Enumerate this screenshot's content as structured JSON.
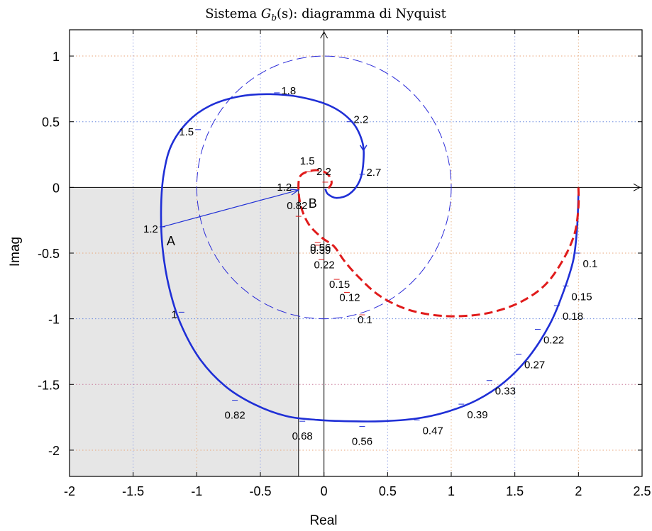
{
  "chart_data": {
    "type": "line",
    "title": "Sistema G_b(s): diagramma di Nyquist",
    "title_parts": {
      "prefix": "Sistema ",
      "symbol": "G",
      "subscript": "b",
      "arg": "(s)",
      "suffix": ": diagramma di Nyquist"
    },
    "xlabel": "Real",
    "ylabel": "Imag",
    "xlim": [
      -2,
      2.5
    ],
    "ylim": [
      -2.2,
      1.2
    ],
    "xticks": [
      -2,
      -1.5,
      -1,
      -0.5,
      0,
      0.5,
      1,
      1.5,
      2,
      2.5
    ],
    "yticks": [
      1,
      0.5,
      0,
      -0.5,
      -1,
      -1.5,
      -2
    ],
    "xtick_labels": [
      "-2",
      "-1.5",
      "-1",
      "-0.5",
      "0",
      "0.5",
      "1",
      "1.5",
      "2",
      "2.5"
    ],
    "ytick_labels": [
      "1",
      "0.5",
      "0",
      "-0.5",
      "-1",
      "-1.5",
      "-2"
    ],
    "grid": true,
    "shaded_region": {
      "x": [
        -2,
        -0.2
      ],
      "y": [
        -2.2,
        0
      ],
      "color": "#e6e6e6"
    },
    "unit_circle": {
      "center": [
        0,
        0
      ],
      "radius": 1,
      "color": "#2b2bd8"
    },
    "series": [
      {
        "style": "solid",
        "color": "#1f2fd6",
        "points": [
          [
            2.0,
            -0.05
          ],
          [
            1.99,
            -0.3
          ],
          [
            1.96,
            -0.55
          ],
          [
            1.88,
            -0.8
          ],
          [
            1.77,
            -1.05
          ],
          [
            1.61,
            -1.29
          ],
          [
            1.42,
            -1.48
          ],
          [
            1.2,
            -1.62
          ],
          [
            0.96,
            -1.71
          ],
          [
            0.72,
            -1.76
          ],
          [
            0.45,
            -1.78
          ],
          [
            0.2,
            -1.78
          ],
          [
            -0.05,
            -1.77
          ],
          [
            -0.3,
            -1.74
          ],
          [
            -0.55,
            -1.65
          ],
          [
            -0.78,
            -1.51
          ],
          [
            -0.98,
            -1.3
          ],
          [
            -1.13,
            -1.03
          ],
          [
            -1.22,
            -0.75
          ],
          [
            -1.27,
            -0.45
          ],
          [
            -1.28,
            -0.15
          ],
          [
            -1.26,
            0.1
          ],
          [
            -1.2,
            0.32
          ],
          [
            -1.07,
            0.5
          ],
          [
            -0.9,
            0.62
          ],
          [
            -0.68,
            0.69
          ],
          [
            -0.45,
            0.71
          ],
          [
            -0.2,
            0.69
          ],
          [
            0.05,
            0.62
          ],
          [
            0.22,
            0.5
          ],
          [
            0.3,
            0.35
          ],
          [
            0.31,
            0.2
          ],
          [
            0.28,
            0.05
          ],
          [
            0.2,
            -0.05
          ],
          [
            0.1,
            -0.08
          ],
          [
            0.03,
            -0.05
          ],
          [
            0.01,
            -0.01
          ]
        ],
        "marks": [
          {
            "label": "0.1",
            "x": 1.99,
            "y": -0.5
          },
          {
            "label": "0.15",
            "x": 1.9,
            "y": -0.75
          },
          {
            "label": "0.18",
            "x": 1.83,
            "y": -0.9
          },
          {
            "label": "0.22",
            "x": 1.68,
            "y": -1.08
          },
          {
            "label": "0.27",
            "x": 1.53,
            "y": -1.27
          },
          {
            "label": "0.33",
            "x": 1.3,
            "y": -1.47
          },
          {
            "label": "0.39",
            "x": 1.08,
            "y": -1.65
          },
          {
            "label": "0.47",
            "x": 0.73,
            "y": -1.77
          },
          {
            "label": "0.56",
            "x": 0.3,
            "y": -1.82
          },
          {
            "label": "0.68",
            "x": -0.17,
            "y": -1.78
          },
          {
            "label": "0.82",
            "x": -0.7,
            "y": -1.62
          },
          {
            "label": "1",
            "x": -1.12,
            "y": -0.95
          },
          {
            "label": "1.2",
            "x": -1.27,
            "y": -0.3
          },
          {
            "label": "1.5",
            "x": -0.99,
            "y": 0.44
          },
          {
            "label": "1.8",
            "x": -0.37,
            "y": 0.72
          },
          {
            "label": "2.2",
            "x": 0.2,
            "y": 0.5
          },
          {
            "label": "2.7",
            "x": 0.3,
            "y": 0.1
          }
        ]
      },
      {
        "style": "dashed",
        "color": "#e01b1b",
        "points": [
          [
            2.0,
            0.0
          ],
          [
            2.0,
            -0.15
          ],
          [
            1.97,
            -0.35
          ],
          [
            1.88,
            -0.55
          ],
          [
            1.74,
            -0.74
          ],
          [
            1.55,
            -0.87
          ],
          [
            1.32,
            -0.95
          ],
          [
            1.08,
            -0.98
          ],
          [
            0.85,
            -0.97
          ],
          [
            0.63,
            -0.92
          ],
          [
            0.43,
            -0.82
          ],
          [
            0.27,
            -0.68
          ],
          [
            0.16,
            -0.56
          ],
          [
            0.08,
            -0.45
          ],
          [
            -0.02,
            -0.38
          ],
          [
            -0.12,
            -0.28
          ],
          [
            -0.18,
            -0.15
          ],
          [
            -0.2,
            -0.02
          ],
          [
            -0.19,
            0.08
          ],
          [
            -0.13,
            0.12
          ],
          [
            -0.04,
            0.13
          ],
          [
            0.03,
            0.1
          ],
          [
            0.06,
            0.04
          ],
          [
            0.04,
            0.0
          ],
          [
            0.01,
            -0.01
          ]
        ],
        "marks": [
          {
            "label": "0.1",
            "x": 0.3,
            "y": -0.97
          },
          {
            "label": "0.12",
            "x": 0.18,
            "y": -0.8
          },
          {
            "label": "0.15",
            "x": 0.1,
            "y": -0.7
          },
          {
            "label": "0.22",
            "x": -0.02,
            "y": -0.55
          },
          {
            "label": "0.39",
            "x": -0.05,
            "y": -0.44
          },
          {
            "label": "0.56",
            "x": -0.05,
            "y": -0.42
          },
          {
            "label": "0.82",
            "x": -0.2,
            "y": -0.22
          },
          {
            "label": "1.5",
            "x": -0.12,
            "y": 0.12
          },
          {
            "label": "2.2",
            "x": 0.01,
            "y": 0.04
          }
        ]
      }
    ],
    "annotations": [
      {
        "label": "A",
        "x": -1.27,
        "y": -0.3
      },
      {
        "label": "B",
        "x": -0.2,
        "y": -0.15
      },
      {
        "label": "1.2",
        "x": -0.2,
        "y": -0.02
      }
    ],
    "vector": {
      "from": [
        -1.27,
        -0.3
      ],
      "to": [
        -0.2,
        -0.02
      ],
      "color": "#1f2fd6"
    }
  }
}
